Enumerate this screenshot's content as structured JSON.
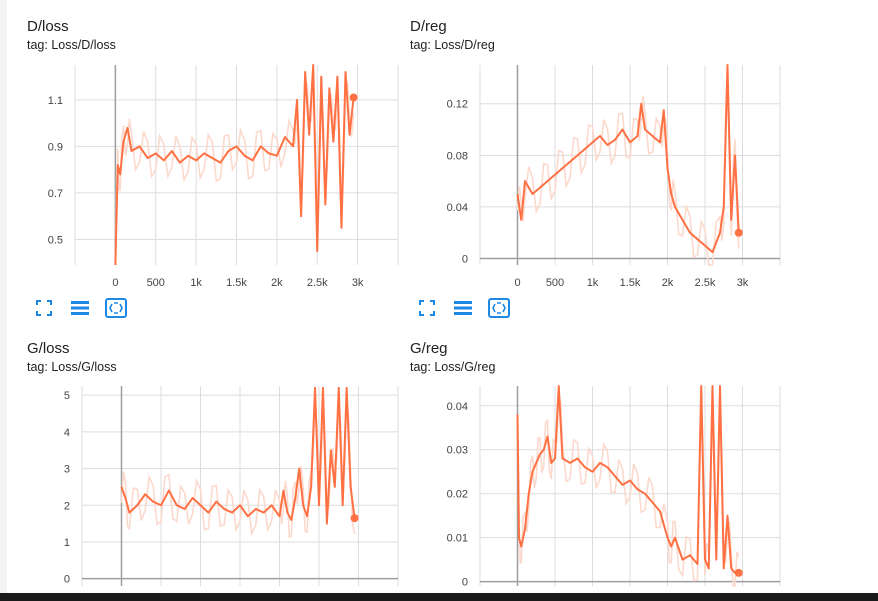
{
  "colors": {
    "series": "#ff7043",
    "series_light": "#fcd9cd",
    "axis": "#9e9e9e",
    "grid": "#dddddd",
    "icon": "#1e88e5"
  },
  "icons": [
    "fullscreen-icon",
    "data-table-icon",
    "fit-domain-icon"
  ],
  "chart_data": [
    {
      "type": "line",
      "title": "D/loss",
      "subtitle": "tag: Loss/D/loss",
      "xlim": [
        -500,
        3500
      ],
      "ylim": [
        0.39,
        1.25
      ],
      "xticks": [
        0,
        500,
        1000,
        1500,
        2000,
        2500,
        3000
      ],
      "xtick_labels": [
        "0",
        "500",
        "1k",
        "1.5k",
        "2k",
        "2.5k",
        "3k"
      ],
      "yticks": [
        0.5,
        0.7,
        0.9,
        1.1
      ],
      "ytick_labels": [
        "0.5",
        "0.7",
        "0.9",
        "1.1"
      ],
      "grid": true,
      "series": [
        {
          "x": [
            0,
            30,
            60,
            100,
            150,
            200,
            300,
            400,
            500,
            600,
            700,
            800,
            900,
            1000,
            1100,
            1200,
            1300,
            1400,
            1500,
            1600,
            1700,
            1800,
            1900,
            2000,
            2100,
            2200,
            2250,
            2300,
            2350,
            2400,
            2450,
            2500,
            2550,
            2600,
            2650,
            2700,
            2750,
            2800,
            2850,
            2900,
            2950
          ],
          "y": [
            0.39,
            0.82,
            0.78,
            0.92,
            0.98,
            0.88,
            0.9,
            0.85,
            0.87,
            0.84,
            0.88,
            0.83,
            0.86,
            0.84,
            0.87,
            0.85,
            0.83,
            0.88,
            0.9,
            0.86,
            0.84,
            0.9,
            0.87,
            0.86,
            0.94,
            0.9,
            1.1,
            0.6,
            1.22,
            0.95,
            1.25,
            0.45,
            1.2,
            0.65,
            1.15,
            0.92,
            1.2,
            0.55,
            1.22,
            0.95,
            1.11
          ]
        }
      ]
    },
    {
      "type": "line",
      "title": "D/reg",
      "subtitle": "tag: Loss/D/reg",
      "xlim": [
        -500,
        3500
      ],
      "ylim": [
        -0.005,
        0.15
      ],
      "xticks": [
        0,
        500,
        1000,
        1500,
        2000,
        2500,
        3000
      ],
      "xtick_labels": [
        "0",
        "500",
        "1k",
        "1.5k",
        "2k",
        "2.5k",
        "3k"
      ],
      "yticks": [
        0,
        0.04,
        0.08,
        0.12
      ],
      "ytick_labels": [
        "0",
        "0.04",
        "0.08",
        "0.12"
      ],
      "grid": true,
      "series": [
        {
          "x": [
            0,
            50,
            100,
            200,
            300,
            400,
            500,
            600,
            700,
            800,
            900,
            1000,
            1100,
            1200,
            1300,
            1400,
            1500,
            1600,
            1650,
            1700,
            1800,
            1900,
            1950,
            2000,
            2050,
            2100,
            2200,
            2300,
            2400,
            2500,
            2600,
            2700,
            2750,
            2800,
            2850,
            2900,
            2950
          ],
          "y": [
            0.05,
            0.03,
            0.06,
            0.05,
            0.055,
            0.06,
            0.065,
            0.07,
            0.075,
            0.08,
            0.085,
            0.09,
            0.095,
            0.088,
            0.092,
            0.1,
            0.09,
            0.095,
            0.12,
            0.1,
            0.095,
            0.09,
            0.115,
            0.07,
            0.05,
            0.04,
            0.03,
            0.02,
            0.015,
            0.01,
            0.005,
            0.02,
            0.04,
            0.15,
            0.03,
            0.08,
            0.02
          ]
        }
      ]
    },
    {
      "type": "line",
      "title": "G/loss",
      "subtitle": "tag: Loss/G/loss",
      "xlim": [
        -500,
        3500
      ],
      "ylim": [
        -0.2,
        5.25
      ],
      "xticks": [
        0,
        500,
        1000,
        1500,
        2000,
        2500,
        3000
      ],
      "yticks": [
        0,
        1,
        2,
        3,
        4,
        5
      ],
      "ytick_labels": [
        "0",
        "1",
        "2",
        "3",
        "4",
        "5"
      ],
      "grid": true,
      "series": [
        {
          "x": [
            0,
            50,
            100,
            200,
            300,
            400,
            500,
            600,
            700,
            800,
            900,
            1000,
            1100,
            1200,
            1300,
            1400,
            1500,
            1600,
            1700,
            1800,
            1900,
            2000,
            2050,
            2100,
            2150,
            2200,
            2250,
            2300,
            2350,
            2400,
            2450,
            2500,
            2550,
            2600,
            2650,
            2700,
            2750,
            2800,
            2850,
            2900,
            2950
          ],
          "y": [
            2.5,
            2.2,
            1.8,
            2.0,
            2.3,
            2.1,
            2.0,
            2.4,
            2.0,
            1.9,
            2.2,
            2.0,
            1.8,
            2.1,
            1.9,
            1.8,
            2.0,
            1.7,
            1.9,
            1.8,
            2.0,
            1.7,
            2.4,
            1.8,
            1.6,
            2.2,
            3.0,
            2.0,
            1.7,
            2.5,
            5.2,
            2.0,
            5.2,
            1.5,
            3.5,
            2.5,
            5.2,
            2.0,
            5.2,
            2.5,
            1.65
          ]
        }
      ]
    },
    {
      "type": "line",
      "title": "G/reg",
      "subtitle": "tag: Loss/G/reg",
      "xlim": [
        -500,
        3500
      ],
      "ylim": [
        -0.001,
        0.0445
      ],
      "xticks": [
        0,
        500,
        1000,
        1500,
        2000,
        2500,
        3000
      ],
      "yticks": [
        0,
        0.01,
        0.02,
        0.03,
        0.04
      ],
      "ytick_labels": [
        "0",
        "0.01",
        "0.02",
        "0.03",
        "0.04"
      ],
      "grid": true,
      "series": [
        {
          "x": [
            0,
            20,
            50,
            100,
            150,
            200,
            250,
            300,
            350,
            400,
            450,
            500,
            550,
            600,
            700,
            800,
            900,
            1000,
            1100,
            1200,
            1300,
            1400,
            1500,
            1600,
            1700,
            1800,
            1900,
            2000,
            2050,
            2100,
            2200,
            2300,
            2400,
            2450,
            2500,
            2550,
            2600,
            2650,
            2700,
            2750,
            2800,
            2850,
            2900,
            2950
          ],
          "y": [
            0.038,
            0.01,
            0.008,
            0.012,
            0.02,
            0.025,
            0.027,
            0.029,
            0.03,
            0.033,
            0.027,
            0.028,
            0.045,
            0.028,
            0.027,
            0.028,
            0.026,
            0.025,
            0.027,
            0.026,
            0.024,
            0.022,
            0.023,
            0.021,
            0.02,
            0.018,
            0.016,
            0.01,
            0.008,
            0.01,
            0.005,
            0.006,
            0.004,
            0.045,
            0.005,
            0.003,
            0.045,
            0.005,
            0.045,
            0.003,
            0.015,
            0.003,
            0.002,
            0.002
          ]
        }
      ]
    }
  ]
}
